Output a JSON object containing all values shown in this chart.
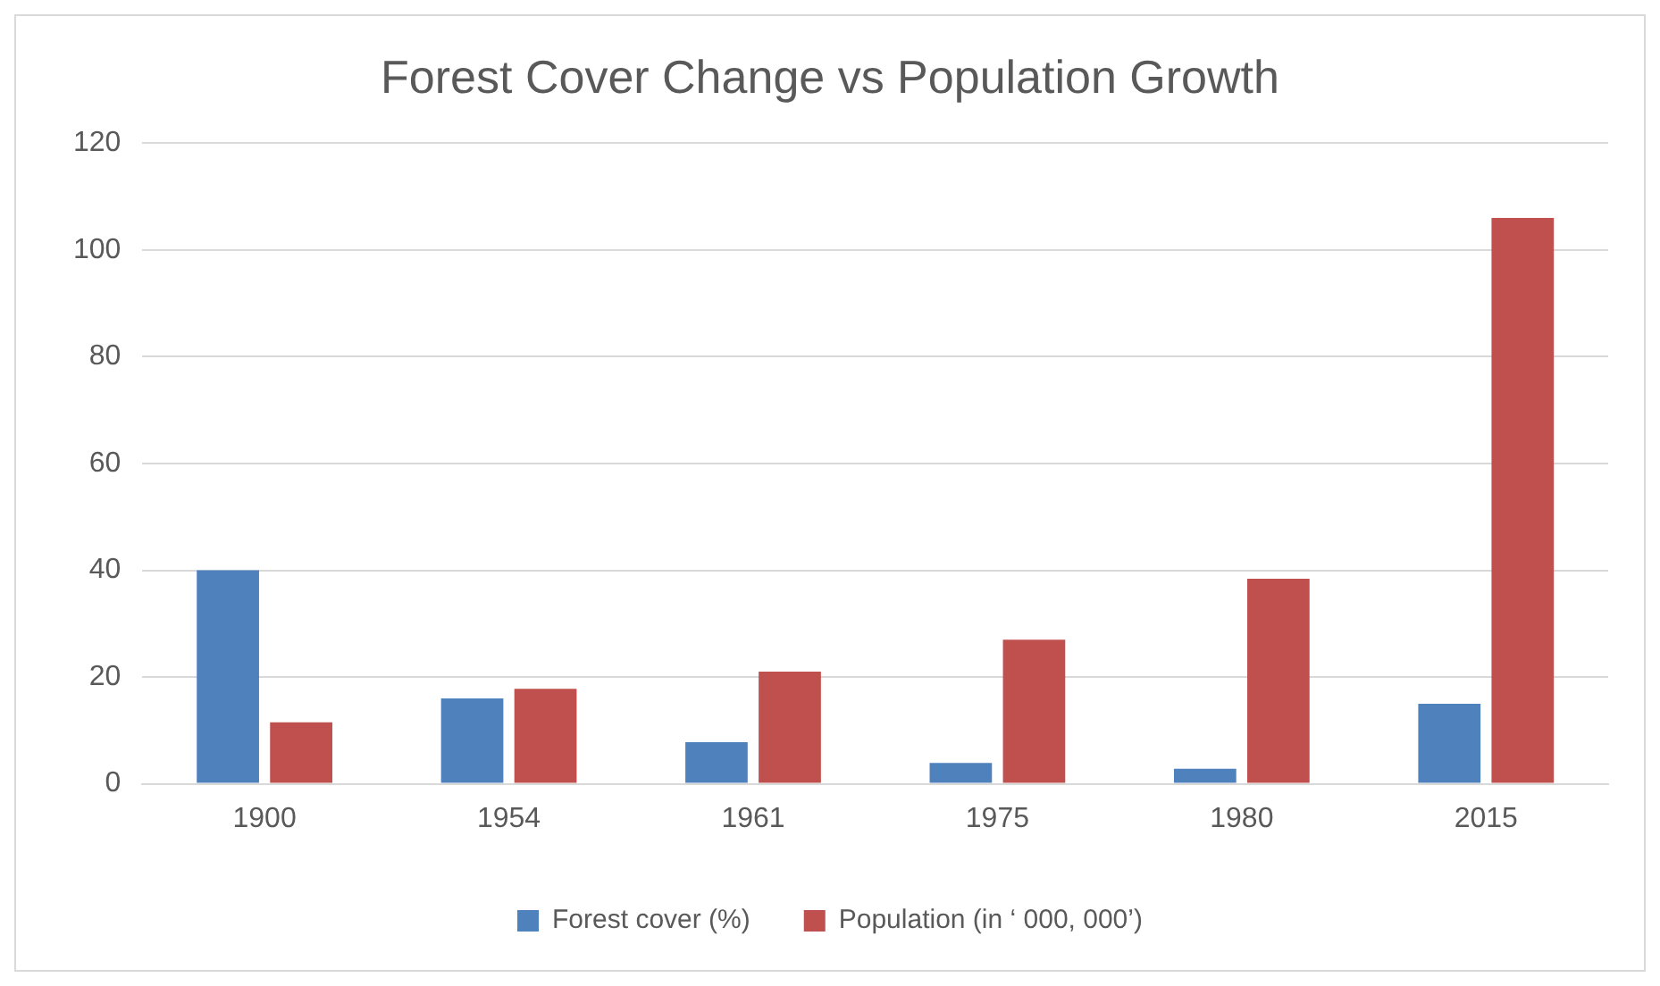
{
  "chart_data": {
    "type": "bar",
    "title": "Forest Cover Change vs Population Growth",
    "categories": [
      "1900",
      "1954",
      "1961",
      "1975",
      "1980",
      "2015"
    ],
    "series": [
      {
        "name": "Forest cover (%)",
        "color": "#4f81bd",
        "values": [
          40,
          16,
          7.8,
          3.9,
          2.8,
          15
        ]
      },
      {
        "name": "Population (in ‘ 000, 000’)",
        "color": "#c0504d",
        "values": [
          11.5,
          17.8,
          21,
          27,
          38.4,
          106
        ]
      }
    ],
    "ylim": [
      0,
      120
    ],
    "yticks": [
      0,
      20,
      40,
      60,
      80,
      100,
      120
    ],
    "grid": "y",
    "legend": "bottom"
  }
}
